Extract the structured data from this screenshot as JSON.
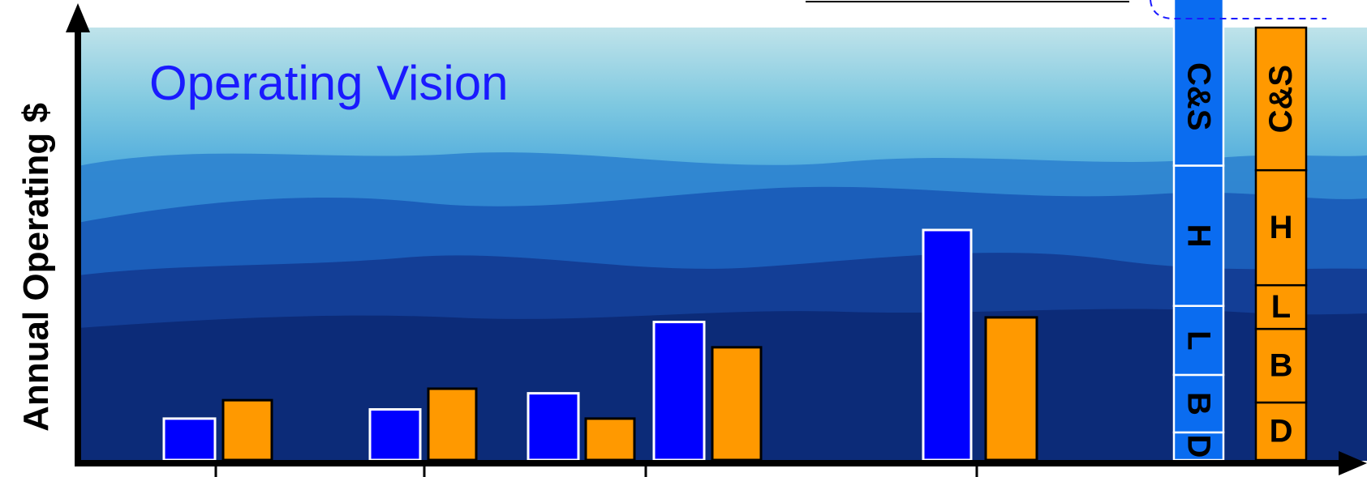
{
  "chart_data": {
    "type": "bar",
    "title": "Operating Vision",
    "ylabel": "Annual Operating $",
    "xlabel": "",
    "grid": false,
    "ylim": [
      0,
      100
    ],
    "groups": [
      {
        "values": [
          9,
          13
        ]
      },
      {
        "values": [
          11,
          15.5
        ]
      },
      {
        "values": [
          14.5,
          9
        ]
      },
      {
        "values": [
          30,
          24.5
        ]
      },
      {
        "values": [
          50,
          31
        ]
      }
    ],
    "stacks": [
      {
        "color": "#0a6cf0",
        "segments": [
          {
            "label": "D",
            "value": 6
          },
          {
            "label": "B",
            "value": 12.5
          },
          {
            "label": "L",
            "value": 15
          },
          {
            "label": "H",
            "value": 30.5
          },
          {
            "label": "C&S",
            "value": 37
          }
        ]
      },
      {
        "color": "#ff9900",
        "segments": [
          {
            "label": "D",
            "value": 12.5
          },
          {
            "label": "B",
            "value": 16
          },
          {
            "label": "L",
            "value": 9.5
          },
          {
            "label": "H",
            "value": 25
          },
          {
            "label": "C&S",
            "value": 31
          }
        ]
      }
    ],
    "colors": {
      "series_blue": "#0000ff",
      "series_orange": "#ff9900",
      "title": "#1a1aff",
      "axis": "#000000"
    }
  }
}
